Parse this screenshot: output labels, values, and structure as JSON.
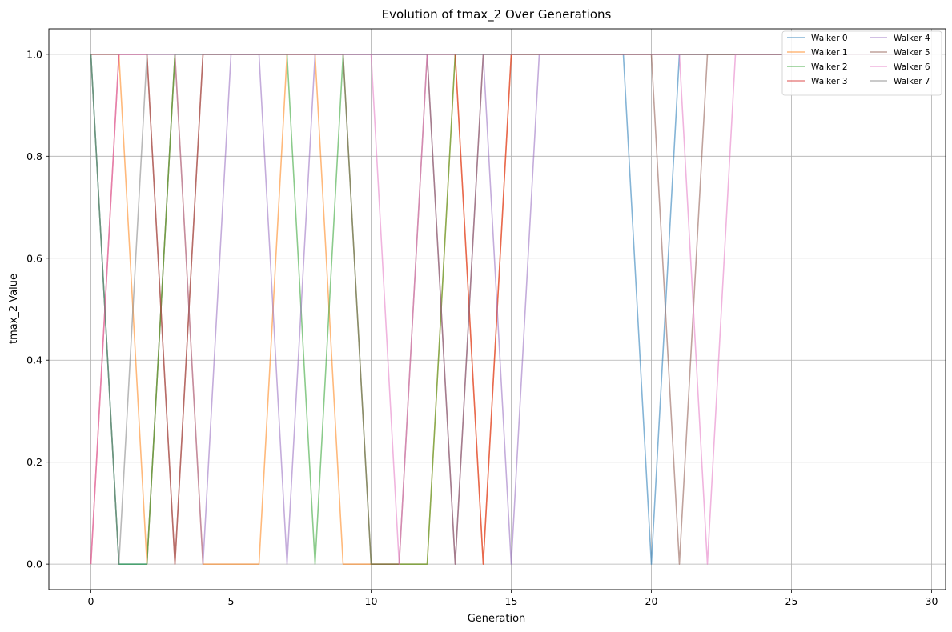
{
  "chart_data": {
    "type": "line",
    "title": "Evolution of tmax_2 Over Generations",
    "xlabel": "Generation",
    "ylabel": "tmax_2 Value",
    "xlim": [
      -1.5,
      30.5
    ],
    "ylim": [
      -0.05,
      1.05
    ],
    "xticks": [
      "0",
      "5",
      "10",
      "15",
      "20",
      "25",
      "30"
    ],
    "yticks": [
      "0.0",
      "0.2",
      "0.4",
      "0.6",
      "0.8",
      "1.0"
    ],
    "grid": true,
    "legend_position": "top-right",
    "legend_columns": 2,
    "x": [
      0,
      1,
      2,
      3,
      4,
      5,
      6,
      7,
      8,
      9,
      10,
      11,
      12,
      13,
      14,
      15,
      16,
      17,
      18,
      19,
      20,
      21,
      22,
      23,
      24,
      25,
      26,
      27,
      28,
      29
    ],
    "series": [
      {
        "name": "Walker 0",
        "color": "#1f77b4",
        "values": [
          1,
          0,
          0,
          1,
          1,
          1,
          1,
          1,
          1,
          1,
          1,
          1,
          1,
          1,
          1,
          1,
          1,
          1,
          1,
          1,
          0,
          1,
          1,
          1,
          1,
          1,
          1,
          1,
          1,
          1
        ]
      },
      {
        "name": "Walker 1",
        "color": "#ff7f0e",
        "values": [
          1,
          1,
          0,
          1,
          0,
          0,
          0,
          1,
          1,
          0,
          0,
          0,
          0,
          1,
          0,
          1,
          1,
          1,
          1,
          1,
          1,
          1,
          1,
          1,
          1,
          1,
          1,
          1,
          1,
          1
        ]
      },
      {
        "name": "Walker 2",
        "color": "#2ca02c",
        "values": [
          1,
          0,
          0,
          1,
          1,
          1,
          1,
          1,
          0,
          1,
          0,
          0,
          0,
          1,
          1,
          1,
          1,
          1,
          1,
          1,
          1,
          1,
          1,
          1,
          1,
          1,
          1,
          1,
          1,
          1
        ]
      },
      {
        "name": "Walker 3",
        "color": "#d62728",
        "values": [
          0,
          1,
          1,
          0,
          1,
          1,
          1,
          1,
          1,
          1,
          1,
          1,
          1,
          1,
          0,
          1,
          1,
          1,
          1,
          1,
          1,
          1,
          1,
          1,
          1,
          1,
          1,
          1,
          1,
          1
        ]
      },
      {
        "name": "Walker 4",
        "color": "#9467bd",
        "values": [
          1,
          1,
          1,
          1,
          0,
          1,
          1,
          0,
          1,
          1,
          1,
          1,
          1,
          0,
          1,
          0,
          1,
          1,
          1,
          1,
          1,
          1,
          1,
          1,
          1,
          1,
          1,
          1,
          1,
          1
        ]
      },
      {
        "name": "Walker 5",
        "color": "#8c564b",
        "values": [
          1,
          1,
          1,
          0,
          1,
          1,
          1,
          1,
          1,
          1,
          0,
          0,
          1,
          0,
          1,
          1,
          1,
          1,
          1,
          1,
          1,
          0,
          1,
          1,
          1,
          1,
          1,
          1,
          1,
          1
        ]
      },
      {
        "name": "Walker 6",
        "color": "#e377c2",
        "values": [
          0,
          1,
          1,
          1,
          1,
          1,
          1,
          1,
          1,
          1,
          1,
          0,
          1,
          1,
          1,
          1,
          1,
          1,
          1,
          1,
          1,
          1,
          0,
          1,
          1,
          1,
          1,
          1,
          1,
          1
        ]
      },
      {
        "name": "Walker 7",
        "color": "#7f7f7f",
        "values": [
          1,
          0,
          1,
          1,
          1,
          1,
          1,
          1,
          1,
          1,
          1,
          1,
          1,
          1,
          1,
          1,
          1,
          1,
          1,
          1,
          1,
          1,
          1,
          1,
          1,
          1,
          1,
          1,
          1,
          1
        ]
      }
    ]
  }
}
